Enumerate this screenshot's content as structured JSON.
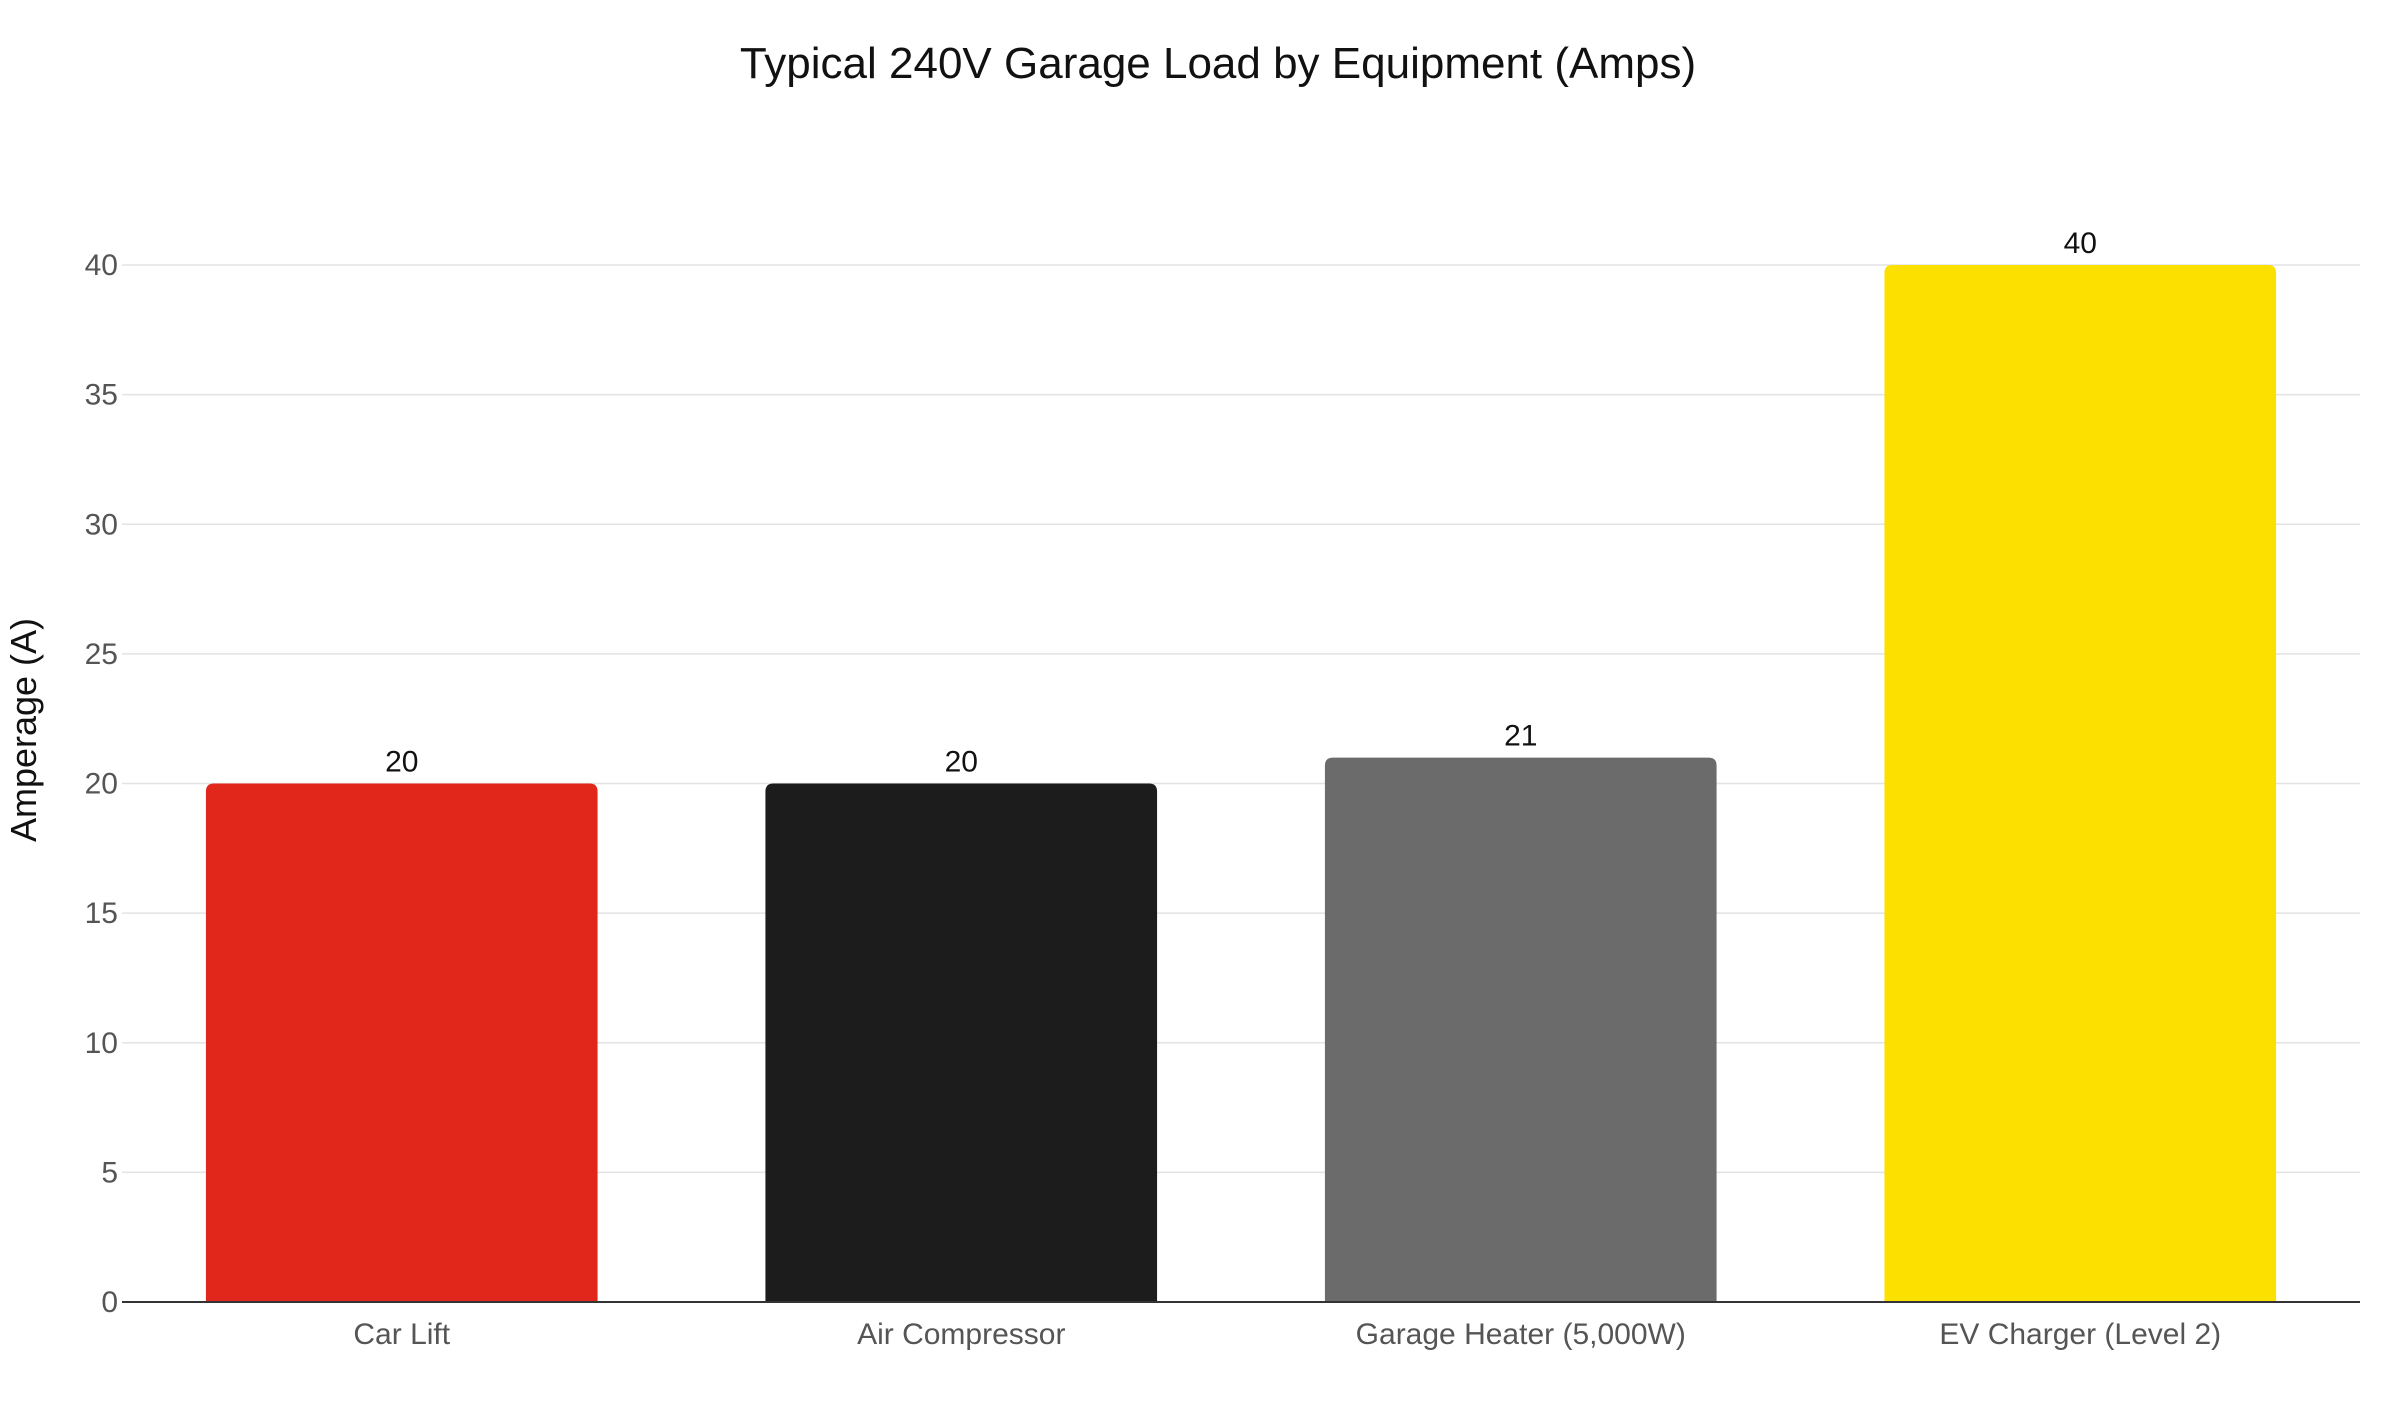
{
  "chart_data": {
    "type": "bar",
    "title": "Typical 240V Garage Load by Equipment (Amps)",
    "xlabel": "",
    "ylabel": "Amperage (A)",
    "categories": [
      "Car Lift",
      "Air Compressor",
      "Garage Heater (5,000W)",
      "EV Charger (Level 2)"
    ],
    "values": [
      20,
      20,
      21,
      40
    ],
    "colors": [
      "#e1261c",
      "#1c1c1c",
      "#6b6b6b",
      "#fce100"
    ],
    "ylim": [
      0,
      40
    ],
    "yticks": [
      0,
      5,
      10,
      15,
      20,
      25,
      30,
      35,
      40
    ],
    "grid": true,
    "legend": "none",
    "data_labels": true
  }
}
